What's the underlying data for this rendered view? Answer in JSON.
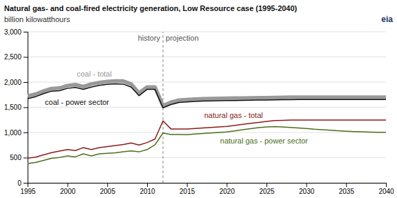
{
  "chart_data": {
    "type": "line",
    "title": "Natural gas- and coal-fired electricity generation, Low Resource case (1995-2040)",
    "ylabel": "billion kilowatthours",
    "x": [
      1995,
      1996,
      1997,
      1998,
      1999,
      2000,
      2001,
      2002,
      2003,
      2004,
      2005,
      2006,
      2007,
      2008,
      2009,
      2010,
      2011,
      2012,
      2013,
      2014,
      2015,
      2016,
      2017,
      2018,
      2019,
      2020,
      2021,
      2022,
      2023,
      2024,
      2025,
      2026,
      2027,
      2028,
      2029,
      2030,
      2031,
      2032,
      2033,
      2034,
      2035,
      2036,
      2037,
      2038,
      2039,
      2040
    ],
    "xlim": [
      1995,
      2040
    ],
    "ylim": [
      0,
      3000
    ],
    "xticks": [
      1995,
      2000,
      2005,
      2010,
      2015,
      2020,
      2025,
      2030,
      2035,
      2040
    ],
    "yticks": [
      0,
      500,
      {
        "value": 1000,
        "label": "1,000"
      },
      {
        "value": 1500,
        "label": "1,500"
      },
      {
        "value": 2000,
        "label": "2,000"
      },
      {
        "value": 2500,
        "label": "2,500"
      },
      {
        "value": 3000,
        "label": "3,000"
      }
    ],
    "grid": true,
    "divider": {
      "x": 2012,
      "labels": [
        "history",
        "projection"
      ]
    },
    "annotations": [
      "eia"
    ],
    "series": [
      {
        "name": "coal - total",
        "color": "#999999",
        "values": [
          1720,
          1760,
          1820,
          1870,
          1880,
          1930,
          1950,
          1910,
          1960,
          1990,
          2010,
          2020,
          2020,
          1960,
          1780,
          1900,
          1900,
          1530,
          1600,
          1640,
          1650,
          1660,
          1668,
          1672,
          1675,
          1678,
          1680,
          1683,
          1685,
          1688,
          1690,
          1693,
          1695,
          1697,
          1698,
          1700,
          1700,
          1700,
          1700,
          1700,
          1700,
          1700,
          1700,
          1700,
          1700,
          1700
        ]
      },
      {
        "name": "coal - power sector",
        "color": "#111111",
        "values": [
          1670,
          1710,
          1770,
          1820,
          1830,
          1875,
          1895,
          1855,
          1900,
          1935,
          1955,
          1965,
          1960,
          1900,
          1730,
          1855,
          1855,
          1490,
          1555,
          1595,
          1605,
          1615,
          1623,
          1627,
          1630,
          1633,
          1635,
          1638,
          1640,
          1643,
          1645,
          1648,
          1650,
          1652,
          1653,
          1655,
          1655,
          1655,
          1655,
          1655,
          1655,
          1655,
          1655,
          1655,
          1655,
          1655
        ]
      },
      {
        "name": "natural gas - total",
        "color": "#8b1a1a",
        "values": [
          490,
          510,
          555,
          600,
          630,
          660,
          640,
          700,
          660,
          700,
          720,
          740,
          760,
          790,
          750,
          800,
          870,
          1230,
          1070,
          1070,
          1070,
          1080,
          1090,
          1100,
          1110,
          1120,
          1140,
          1160,
          1180,
          1200,
          1220,
          1235,
          1240,
          1245,
          1247,
          1248,
          1248,
          1248,
          1248,
          1248,
          1248,
          1248,
          1248,
          1248,
          1248,
          1248
        ]
      },
      {
        "name": "natural gas - power sector",
        "color": "#4a6e1a",
        "values": [
          385,
          405,
          445,
          485,
          505,
          535,
          515,
          575,
          535,
          575,
          585,
          595,
          615,
          635,
          615,
          660,
          755,
          990,
          960,
          960,
          955,
          970,
          980,
          990,
          1000,
          1010,
          1030,
          1055,
          1075,
          1095,
          1110,
          1115,
          1108,
          1100,
          1090,
          1080,
          1065,
          1055,
          1045,
          1035,
          1025,
          1018,
          1012,
          1008,
          1005,
          1003
        ]
      }
    ]
  }
}
